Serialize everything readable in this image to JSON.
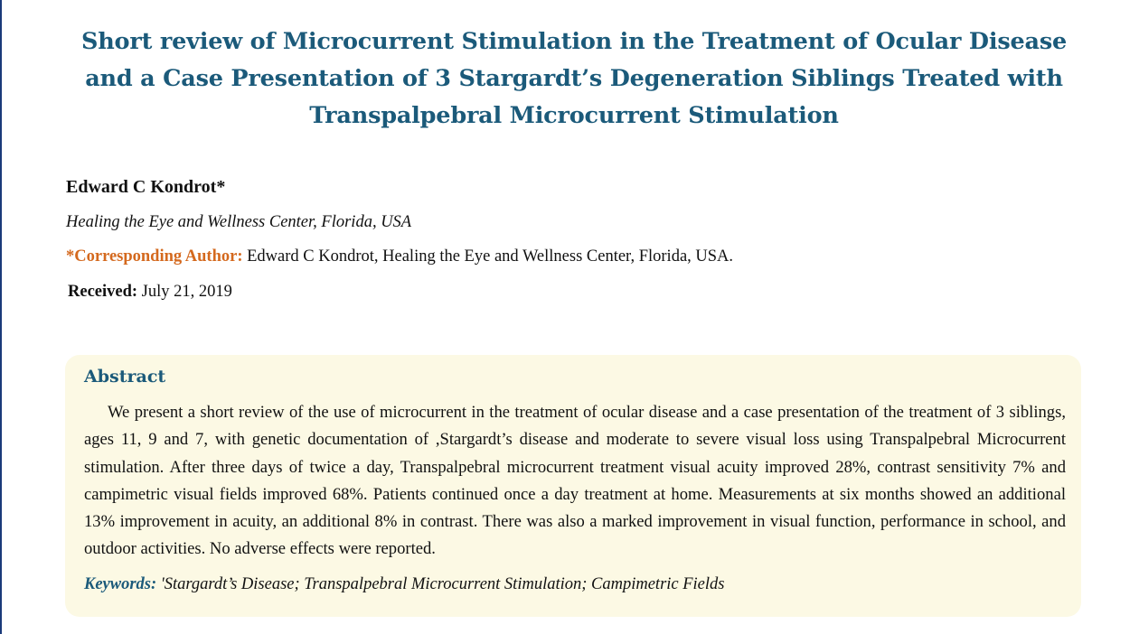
{
  "paper": {
    "title": "Short review of Microcurrent Stimulation in the Treatment of Ocular Disease and a Case Presentation of 3 Stargardt’s Degeneration Siblings Treated with Transpalpebral Microcurrent Stimulation",
    "author": "Edward C Kondrot*",
    "affiliation": "Healing the Eye and Wellness Center, Florida, USA",
    "corresponding_label": "*Corresponding Author:",
    "corresponding_text": " Edward C Kondrot, Healing the Eye and Wellness Center, Florida, USA.",
    "received_label": "Received:",
    "received_date": " July 21, 2019"
  },
  "abstract": {
    "heading": "Abstract",
    "body": "We present a short review of the use of microcurrent in the treatment of ocular disease and a case presentation of the treatment of 3 siblings, ages 11, 9 and 7, with genetic documentation of ,Stargardt’s disease and moderate to severe visual loss using Transpalpebral Microcurrent stimulation. After three days of twice a day, Transpalpebral microcurrent treatment visual acuity improved 28%, contrast sensitivity 7% and campimetric visual fields improved 68%. Patients continued once a day treatment at home. Measurements at six months showed an additional 13% improvement in acuity, an additional 8% in contrast. There was also a marked improvement in visual function, performance in school, and outdoor activities. No adverse effects were reported.",
    "keywords_label": "Keywords:",
    "keywords_text": " 'Stargardt’s Disease; Transpalpebral Microcurrent Stimulation; Campimetric Fields"
  },
  "colors": {
    "title": "#1b5a7a",
    "corresponding_label": "#d4691e",
    "abstract_background": "#fcf9e4"
  }
}
